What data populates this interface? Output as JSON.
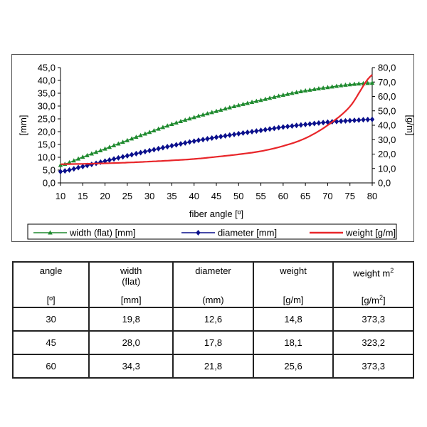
{
  "chart_data": {
    "type": "line",
    "xlabel": "fiber angle [º]",
    "ylabel_left": "[mm]",
    "ylabel_right": "[g/m]",
    "xlim": [
      10,
      80
    ],
    "ylim_left": [
      0,
      45
    ],
    "ylim_right": [
      0,
      80
    ],
    "x_ticks": [
      "10",
      "15",
      "20",
      "25",
      "30",
      "35",
      "40",
      "45",
      "50",
      "55",
      "60",
      "65",
      "70",
      "75",
      "80"
    ],
    "y_left_ticks": [
      "0,0",
      "5,0",
      "10,0",
      "15,0",
      "20,0",
      "25,0",
      "30,0",
      "35,0",
      "40,0",
      "45,0"
    ],
    "y_right_ticks": [
      "0,0",
      "10,0",
      "20,0",
      "30,0",
      "40,0",
      "50,0",
      "60,0",
      "70,0",
      "80,0"
    ],
    "grid": false,
    "legend_position": "bottom",
    "x": [
      10,
      15,
      20,
      25,
      30,
      35,
      40,
      45,
      50,
      55,
      60,
      65,
      70,
      75,
      80
    ],
    "series": [
      {
        "name": "width (flat) [mm]",
        "axis": "left",
        "color": "#1e8a2e",
        "marker": "triangle",
        "values": [
          6.9,
          10.1,
          13.3,
          16.6,
          19.8,
          22.9,
          25.6,
          28.0,
          30.3,
          32.3,
          34.3,
          36.0,
          37.3,
          38.4,
          39.0
        ]
      },
      {
        "name": "diameter [mm]",
        "axis": "left",
        "color": "#0a0f8c",
        "marker": "diamond",
        "values": [
          4.4,
          6.4,
          8.5,
          10.6,
          12.6,
          14.5,
          16.3,
          17.8,
          19.2,
          20.5,
          21.8,
          22.8,
          23.7,
          24.3,
          24.8
        ]
      },
      {
        "name": "weight [g/m]",
        "axis": "right",
        "color": "#e8262a",
        "marker": "none",
        "values": [
          13.0,
          13.2,
          13.6,
          14.1,
          14.8,
          15.6,
          16.6,
          18.1,
          19.8,
          22.0,
          25.6,
          31.0,
          40.0,
          53.0,
          75.0
        ]
      }
    ]
  },
  "table": {
    "headers": [
      {
        "name": "angle",
        "unit": "[º]"
      },
      {
        "name": "width\n(flat)",
        "unit": "[mm]"
      },
      {
        "name": "diameter",
        "unit": "(mm)"
      },
      {
        "name": "weight",
        "unit": "[g/m]"
      },
      {
        "name": "weight m",
        "name_sup": "2",
        "unit": "[g/m",
        "unit_sup": "2",
        "unit_end": "]"
      }
    ],
    "rows": [
      [
        "30",
        "19,8",
        "12,6",
        "14,8",
        "373,3"
      ],
      [
        "45",
        "28,0",
        "17,8",
        "18,1",
        "323,2"
      ],
      [
        "60",
        "34,3",
        "21,8",
        "25,6",
        "373,3"
      ]
    ]
  }
}
